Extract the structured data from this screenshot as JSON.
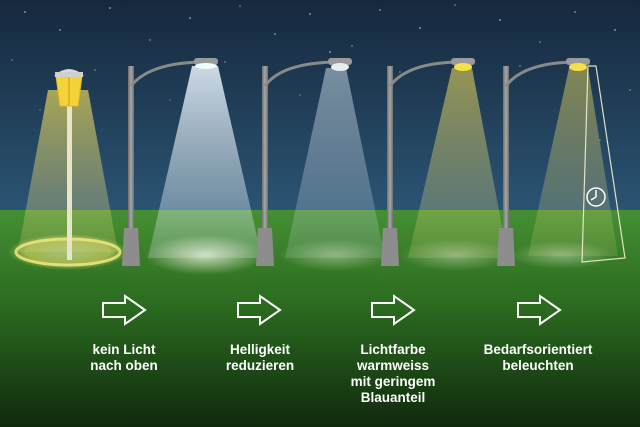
{
  "captions": [
    [
      "kein Licht",
      "nach oben"
    ],
    [
      "Helligkeit",
      "reduzieren"
    ],
    [
      "Lichtfarbe",
      "warmweiss",
      "mit geringem",
      "Blauanteil"
    ],
    [
      "Bedarfsorientiert",
      "beleuchten"
    ]
  ],
  "colors": {
    "sky_top": "#16283d",
    "sky_bottom": "#2a5170",
    "grass_top": "#3f8a2f",
    "grass_bottom": "#12300f",
    "pole": "#8a8a8a",
    "lamp_warm": "#f2d23a",
    "lamp_cool": "#dff0ff",
    "arrow": "#ffffff",
    "caption": "#ffffff"
  },
  "icons": [
    "arrow-right-icon",
    "clock-icon"
  ]
}
